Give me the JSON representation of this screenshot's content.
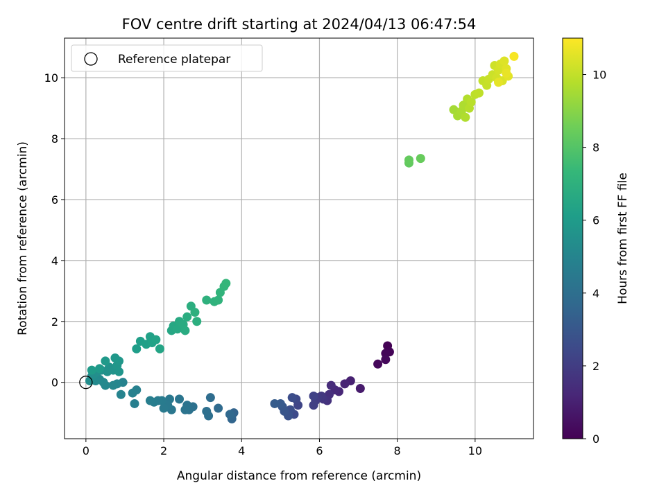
{
  "chart_data": {
    "type": "scatter",
    "title": "FOV centre drift starting at 2024/04/13 06:47:54",
    "xlabel": "Angular distance from reference (arcmin)",
    "ylabel": "Rotation from reference (arcmin)",
    "xlim": [
      -0.55,
      11.5
    ],
    "ylim": [
      -1.85,
      11.3
    ],
    "xticks": [
      0,
      2,
      4,
      6,
      8,
      10
    ],
    "yticks": [
      0,
      2,
      4,
      6,
      8,
      10
    ],
    "grid": true,
    "legend": {
      "position": "top-left",
      "entries": [
        "Reference platepar"
      ]
    },
    "reference_point": {
      "x": 0,
      "y": 0
    },
    "colorbar": {
      "label": "Hours from first FF file",
      "range": [
        0,
        11
      ],
      "ticks": [
        0,
        2,
        4,
        6,
        8,
        10
      ],
      "colormap": "viridis"
    },
    "points": [
      {
        "x": 7.75,
        "y": 1.2,
        "t": 0.05
      },
      {
        "x": 7.8,
        "y": 1.0,
        "t": 0.1
      },
      {
        "x": 7.7,
        "y": 0.95,
        "t": 0.15
      },
      {
        "x": 7.5,
        "y": 0.6,
        "t": 0.2
      },
      {
        "x": 7.7,
        "y": 0.75,
        "t": 0.25
      },
      {
        "x": 7.05,
        "y": -0.2,
        "t": 0.8
      },
      {
        "x": 6.8,
        "y": 0.05,
        "t": 1.0
      },
      {
        "x": 6.65,
        "y": -0.05,
        "t": 1.1
      },
      {
        "x": 6.5,
        "y": -0.3,
        "t": 1.2
      },
      {
        "x": 6.4,
        "y": -0.25,
        "t": 1.3
      },
      {
        "x": 6.3,
        "y": -0.1,
        "t": 1.4
      },
      {
        "x": 6.25,
        "y": -0.4,
        "t": 1.5
      },
      {
        "x": 6.2,
        "y": -0.6,
        "t": 1.6
      },
      {
        "x": 6.1,
        "y": -0.55,
        "t": 1.7
      },
      {
        "x": 6.05,
        "y": -0.45,
        "t": 1.8
      },
      {
        "x": 5.95,
        "y": -0.5,
        "t": 1.9
      },
      {
        "x": 5.9,
        "y": -0.6,
        "t": 2.0
      },
      {
        "x": 5.85,
        "y": -0.75,
        "t": 2.1
      },
      {
        "x": 5.85,
        "y": -0.45,
        "t": 2.2
      },
      {
        "x": 5.45,
        "y": -0.75,
        "t": 2.3
      },
      {
        "x": 5.4,
        "y": -0.55,
        "t": 2.4
      },
      {
        "x": 5.35,
        "y": -1.05,
        "t": 2.5
      },
      {
        "x": 5.3,
        "y": -0.5,
        "t": 2.6
      },
      {
        "x": 5.25,
        "y": -0.9,
        "t": 2.7
      },
      {
        "x": 5.2,
        "y": -1.1,
        "t": 2.8
      },
      {
        "x": 5.1,
        "y": -0.95,
        "t": 2.9
      },
      {
        "x": 5.05,
        "y": -0.8,
        "t": 3.0
      },
      {
        "x": 5.0,
        "y": -0.7,
        "t": 3.1
      },
      {
        "x": 4.85,
        "y": -0.7,
        "t": 3.2
      },
      {
        "x": 3.8,
        "y": -1.0,
        "t": 3.5
      },
      {
        "x": 3.75,
        "y": -1.2,
        "t": 3.6
      },
      {
        "x": 3.7,
        "y": -1.05,
        "t": 3.7
      },
      {
        "x": 3.4,
        "y": -0.85,
        "t": 3.8
      },
      {
        "x": 3.2,
        "y": -0.5,
        "t": 3.9
      },
      {
        "x": 3.15,
        "y": -1.1,
        "t": 4.0
      },
      {
        "x": 3.1,
        "y": -0.95,
        "t": 4.05
      },
      {
        "x": 2.75,
        "y": -0.8,
        "t": 4.1
      },
      {
        "x": 2.65,
        "y": -0.9,
        "t": 4.15
      },
      {
        "x": 2.6,
        "y": -0.75,
        "t": 4.2
      },
      {
        "x": 2.55,
        "y": -0.9,
        "t": 4.25
      },
      {
        "x": 2.4,
        "y": -0.55,
        "t": 4.3
      },
      {
        "x": 2.2,
        "y": -0.9,
        "t": 4.35
      },
      {
        "x": 2.15,
        "y": -0.55,
        "t": 4.4
      },
      {
        "x": 2.1,
        "y": -0.75,
        "t": 4.45
      },
      {
        "x": 2.0,
        "y": -0.85,
        "t": 4.5
      },
      {
        "x": 1.95,
        "y": -0.6,
        "t": 4.55
      },
      {
        "x": 1.85,
        "y": -0.6,
        "t": 4.6
      },
      {
        "x": 1.75,
        "y": -0.65,
        "t": 4.65
      },
      {
        "x": 1.65,
        "y": -0.6,
        "t": 4.7
      },
      {
        "x": 1.25,
        "y": -0.7,
        "t": 4.75
      },
      {
        "x": 1.3,
        "y": -0.25,
        "t": 4.8
      },
      {
        "x": 1.2,
        "y": -0.35,
        "t": 4.85
      },
      {
        "x": 0.95,
        "y": 0.0,
        "t": 4.9
      },
      {
        "x": 0.9,
        "y": -0.4,
        "t": 4.95
      },
      {
        "x": 0.8,
        "y": -0.05,
        "t": 5.0
      },
      {
        "x": 0.7,
        "y": -0.1,
        "t": 5.05
      },
      {
        "x": 0.5,
        "y": -0.1,
        "t": 5.1
      },
      {
        "x": 0.45,
        "y": 0.0,
        "t": 5.15
      },
      {
        "x": 0.35,
        "y": 0.1,
        "t": 5.2
      },
      {
        "x": 0.25,
        "y": 0.05,
        "t": 5.25
      },
      {
        "x": 0.15,
        "y": 0.2,
        "t": 5.3
      },
      {
        "x": 0.1,
        "y": 0.05,
        "t": 5.35
      },
      {
        "x": 0.2,
        "y": 0.25,
        "t": 5.4
      },
      {
        "x": 0.3,
        "y": 0.35,
        "t": 5.45
      },
      {
        "x": 0.4,
        "y": 0.4,
        "t": 5.5
      },
      {
        "x": 0.55,
        "y": 0.35,
        "t": 5.55
      },
      {
        "x": 0.6,
        "y": 0.5,
        "t": 5.6
      },
      {
        "x": 0.7,
        "y": 0.4,
        "t": 5.65
      },
      {
        "x": 0.85,
        "y": 0.35,
        "t": 5.7
      },
      {
        "x": 0.8,
        "y": 0.55,
        "t": 5.75
      },
      {
        "x": 0.85,
        "y": 0.7,
        "t": 5.8
      },
      {
        "x": 0.75,
        "y": 0.8,
        "t": 5.85
      },
      {
        "x": 0.5,
        "y": 0.7,
        "t": 5.9
      },
      {
        "x": 0.35,
        "y": 0.45,
        "t": 5.95
      },
      {
        "x": 0.15,
        "y": 0.4,
        "t": 6.0
      },
      {
        "x": 1.3,
        "y": 1.1,
        "t": 6.1
      },
      {
        "x": 1.4,
        "y": 1.35,
        "t": 6.15
      },
      {
        "x": 1.55,
        "y": 1.25,
        "t": 6.2
      },
      {
        "x": 1.65,
        "y": 1.5,
        "t": 6.25
      },
      {
        "x": 1.7,
        "y": 1.3,
        "t": 6.3
      },
      {
        "x": 1.8,
        "y": 1.4,
        "t": 6.35
      },
      {
        "x": 1.9,
        "y": 1.1,
        "t": 6.4
      },
      {
        "x": 2.2,
        "y": 1.7,
        "t": 6.5
      },
      {
        "x": 2.25,
        "y": 1.85,
        "t": 6.55
      },
      {
        "x": 2.35,
        "y": 1.75,
        "t": 6.6
      },
      {
        "x": 2.4,
        "y": 2.0,
        "t": 6.65
      },
      {
        "x": 2.5,
        "y": 1.9,
        "t": 6.7
      },
      {
        "x": 2.55,
        "y": 1.7,
        "t": 6.75
      },
      {
        "x": 2.6,
        "y": 2.15,
        "t": 6.8
      },
      {
        "x": 2.7,
        "y": 2.5,
        "t": 6.85
      },
      {
        "x": 2.85,
        "y": 2.0,
        "t": 6.9
      },
      {
        "x": 2.8,
        "y": 2.3,
        "t": 6.95
      },
      {
        "x": 3.1,
        "y": 2.7,
        "t": 7.0
      },
      {
        "x": 3.3,
        "y": 2.65,
        "t": 7.05
      },
      {
        "x": 3.4,
        "y": 2.7,
        "t": 7.1
      },
      {
        "x": 3.45,
        "y": 2.95,
        "t": 7.15
      },
      {
        "x": 3.55,
        "y": 3.15,
        "t": 7.2
      },
      {
        "x": 3.6,
        "y": 3.25,
        "t": 7.25
      },
      {
        "x": 8.3,
        "y": 7.2,
        "t": 8.3
      },
      {
        "x": 8.3,
        "y": 7.3,
        "t": 8.35
      },
      {
        "x": 8.6,
        "y": 7.35,
        "t": 8.4
      },
      {
        "x": 9.45,
        "y": 8.95,
        "t": 9.5
      },
      {
        "x": 9.55,
        "y": 8.75,
        "t": 9.55
      },
      {
        "x": 9.65,
        "y": 8.9,
        "t": 9.6
      },
      {
        "x": 9.7,
        "y": 9.1,
        "t": 9.65
      },
      {
        "x": 9.75,
        "y": 8.7,
        "t": 9.7
      },
      {
        "x": 9.8,
        "y": 9.3,
        "t": 9.75
      },
      {
        "x": 9.85,
        "y": 9.0,
        "t": 9.8
      },
      {
        "x": 9.9,
        "y": 9.2,
        "t": 9.85
      },
      {
        "x": 10.0,
        "y": 9.45,
        "t": 9.9
      },
      {
        "x": 10.1,
        "y": 9.5,
        "t": 9.95
      },
      {
        "x": 10.2,
        "y": 9.9,
        "t": 10.0
      },
      {
        "x": 10.3,
        "y": 9.75,
        "t": 10.05
      },
      {
        "x": 10.35,
        "y": 9.95,
        "t": 10.1
      },
      {
        "x": 10.45,
        "y": 10.1,
        "t": 10.15
      },
      {
        "x": 10.5,
        "y": 10.4,
        "t": 10.2
      },
      {
        "x": 10.55,
        "y": 10.0,
        "t": 10.25
      },
      {
        "x": 10.6,
        "y": 10.25,
        "t": 10.3
      },
      {
        "x": 10.65,
        "y": 10.45,
        "t": 10.35
      },
      {
        "x": 10.7,
        "y": 9.9,
        "t": 10.4
      },
      {
        "x": 10.75,
        "y": 10.55,
        "t": 10.45
      },
      {
        "x": 10.8,
        "y": 10.3,
        "t": 10.5
      },
      {
        "x": 10.85,
        "y": 10.05,
        "t": 10.55
      },
      {
        "x": 10.6,
        "y": 9.85,
        "t": 10.6
      },
      {
        "x": 10.8,
        "y": 10.15,
        "t": 10.65
      },
      {
        "x": 11.0,
        "y": 10.7,
        "t": 10.9
      }
    ]
  }
}
